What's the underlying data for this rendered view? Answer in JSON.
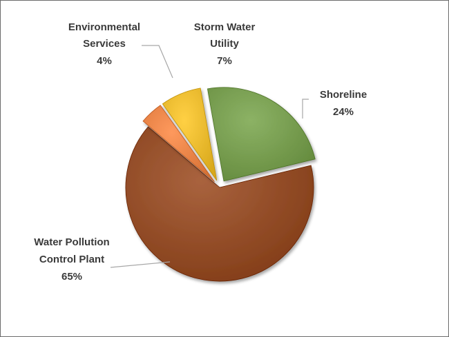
{
  "chart_data": {
    "type": "pie",
    "title": "",
    "legend": "none",
    "slices": [
      {
        "name": "Shoreline",
        "value": 24,
        "label": "24%",
        "color": "#6e9447",
        "exploded": true
      },
      {
        "name": "Water Pollution Control Plant",
        "value": 65,
        "label": "65%",
        "color": "#8b4520",
        "exploded": false
      },
      {
        "name": "Environmental Services",
        "value": 4,
        "label": "4%",
        "color": "#e07b3f",
        "exploded": true
      },
      {
        "name": "Storm Water Utility",
        "value": 7,
        "label": "7%",
        "color": "#e2b226",
        "exploded": true
      }
    ],
    "label_lines": {
      "shoreline": [
        "Shoreline"
      ],
      "wpcp": [
        "Water Pollution",
        "Control Plant"
      ],
      "env": [
        "Environmental",
        "Services"
      ],
      "storm": [
        "Storm Water",
        "Utility"
      ]
    }
  }
}
